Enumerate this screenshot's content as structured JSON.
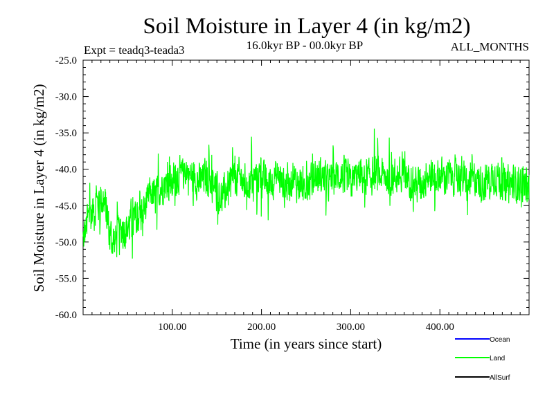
{
  "chart_data": {
    "type": "line",
    "title": "Soil Moisture in Layer 4 (in kg/m2)",
    "experiment_label": "Expt = teadq3-teada3",
    "period_label": "16.0kyr BP - 00.0kyr BP",
    "months_label": "ALL_MONTHS",
    "xlabel": "Time (in years since start)",
    "ylabel": "Soil Moisture in Layer 4 (in kg/m2)",
    "xlim": [
      0,
      500
    ],
    "ylim": [
      -60,
      -25
    ],
    "xticks": [
      100,
      200,
      300,
      400
    ],
    "xtick_labels": [
      "100.00",
      "200.00",
      "300.00",
      "400.00"
    ],
    "yticks": [
      -25,
      -30,
      -35,
      -40,
      -45,
      -50,
      -55,
      -60
    ],
    "ytick_labels": [
      "-25.0",
      "-30.0",
      "-35.0",
      "-40.0",
      "-45.0",
      "-50.0",
      "-55.0",
      "-60.0"
    ],
    "series": [
      {
        "name": "Ocean",
        "color": "#0000ff",
        "values": []
      },
      {
        "name": "Land",
        "color": "#00ff00",
        "x": [
          0,
          5,
          10,
          15,
          20,
          25,
          30,
          35,
          40,
          45,
          50,
          55,
          60,
          65,
          70,
          75,
          80,
          85,
          90,
          95,
          100,
          105,
          110,
          115,
          120,
          125,
          130,
          135,
          140,
          145,
          150,
          155,
          160,
          165,
          170,
          175,
          180,
          185,
          190,
          195,
          200,
          205,
          210,
          215,
          220,
          225,
          230,
          235,
          240,
          245,
          250,
          255,
          260,
          265,
          270,
          275,
          280,
          285,
          290,
          295,
          300,
          305,
          310,
          315,
          320,
          325,
          330,
          335,
          340,
          345,
          350,
          355,
          360,
          365,
          370,
          375,
          380,
          385,
          390,
          395,
          400,
          405,
          410,
          415,
          420,
          425,
          430,
          435,
          440,
          445,
          450,
          455,
          460,
          465,
          470,
          475,
          480,
          485,
          490,
          495,
          500
        ],
        "values": [
          -50,
          -47,
          -46,
          -45,
          -44,
          -45,
          -49,
          -50,
          -49,
          -48,
          -48,
          -47,
          -47,
          -46,
          -45,
          -43,
          -44,
          -43,
          -42,
          -42,
          -42,
          -41,
          -41,
          -40,
          -41,
          -41,
          -42,
          -41,
          -41,
          -42,
          -43,
          -44,
          -43,
          -42,
          -41,
          -41,
          -42,
          -42,
          -41,
          -41,
          -41,
          -42,
          -42,
          -41,
          -41,
          -42,
          -42,
          -41,
          -42,
          -42,
          -42,
          -42,
          -41,
          -41,
          -41,
          -42,
          -41,
          -41,
          -41,
          -41,
          -42,
          -41,
          -41,
          -41,
          -41,
          -41,
          -41,
          -41,
          -41,
          -41,
          -41,
          -41,
          -41,
          -41,
          -42,
          -42,
          -42,
          -41,
          -41,
          -41,
          -41,
          -41,
          -41,
          -41,
          -41,
          -41,
          -42,
          -42,
          -41,
          -42,
          -42,
          -41,
          -41,
          -41,
          -42,
          -42,
          -42,
          -42,
          -42,
          -42,
          -42
        ]
      },
      {
        "name": "AllSurf",
        "color": "#000000",
        "values": []
      }
    ],
    "legend_position": "bottom-right"
  }
}
